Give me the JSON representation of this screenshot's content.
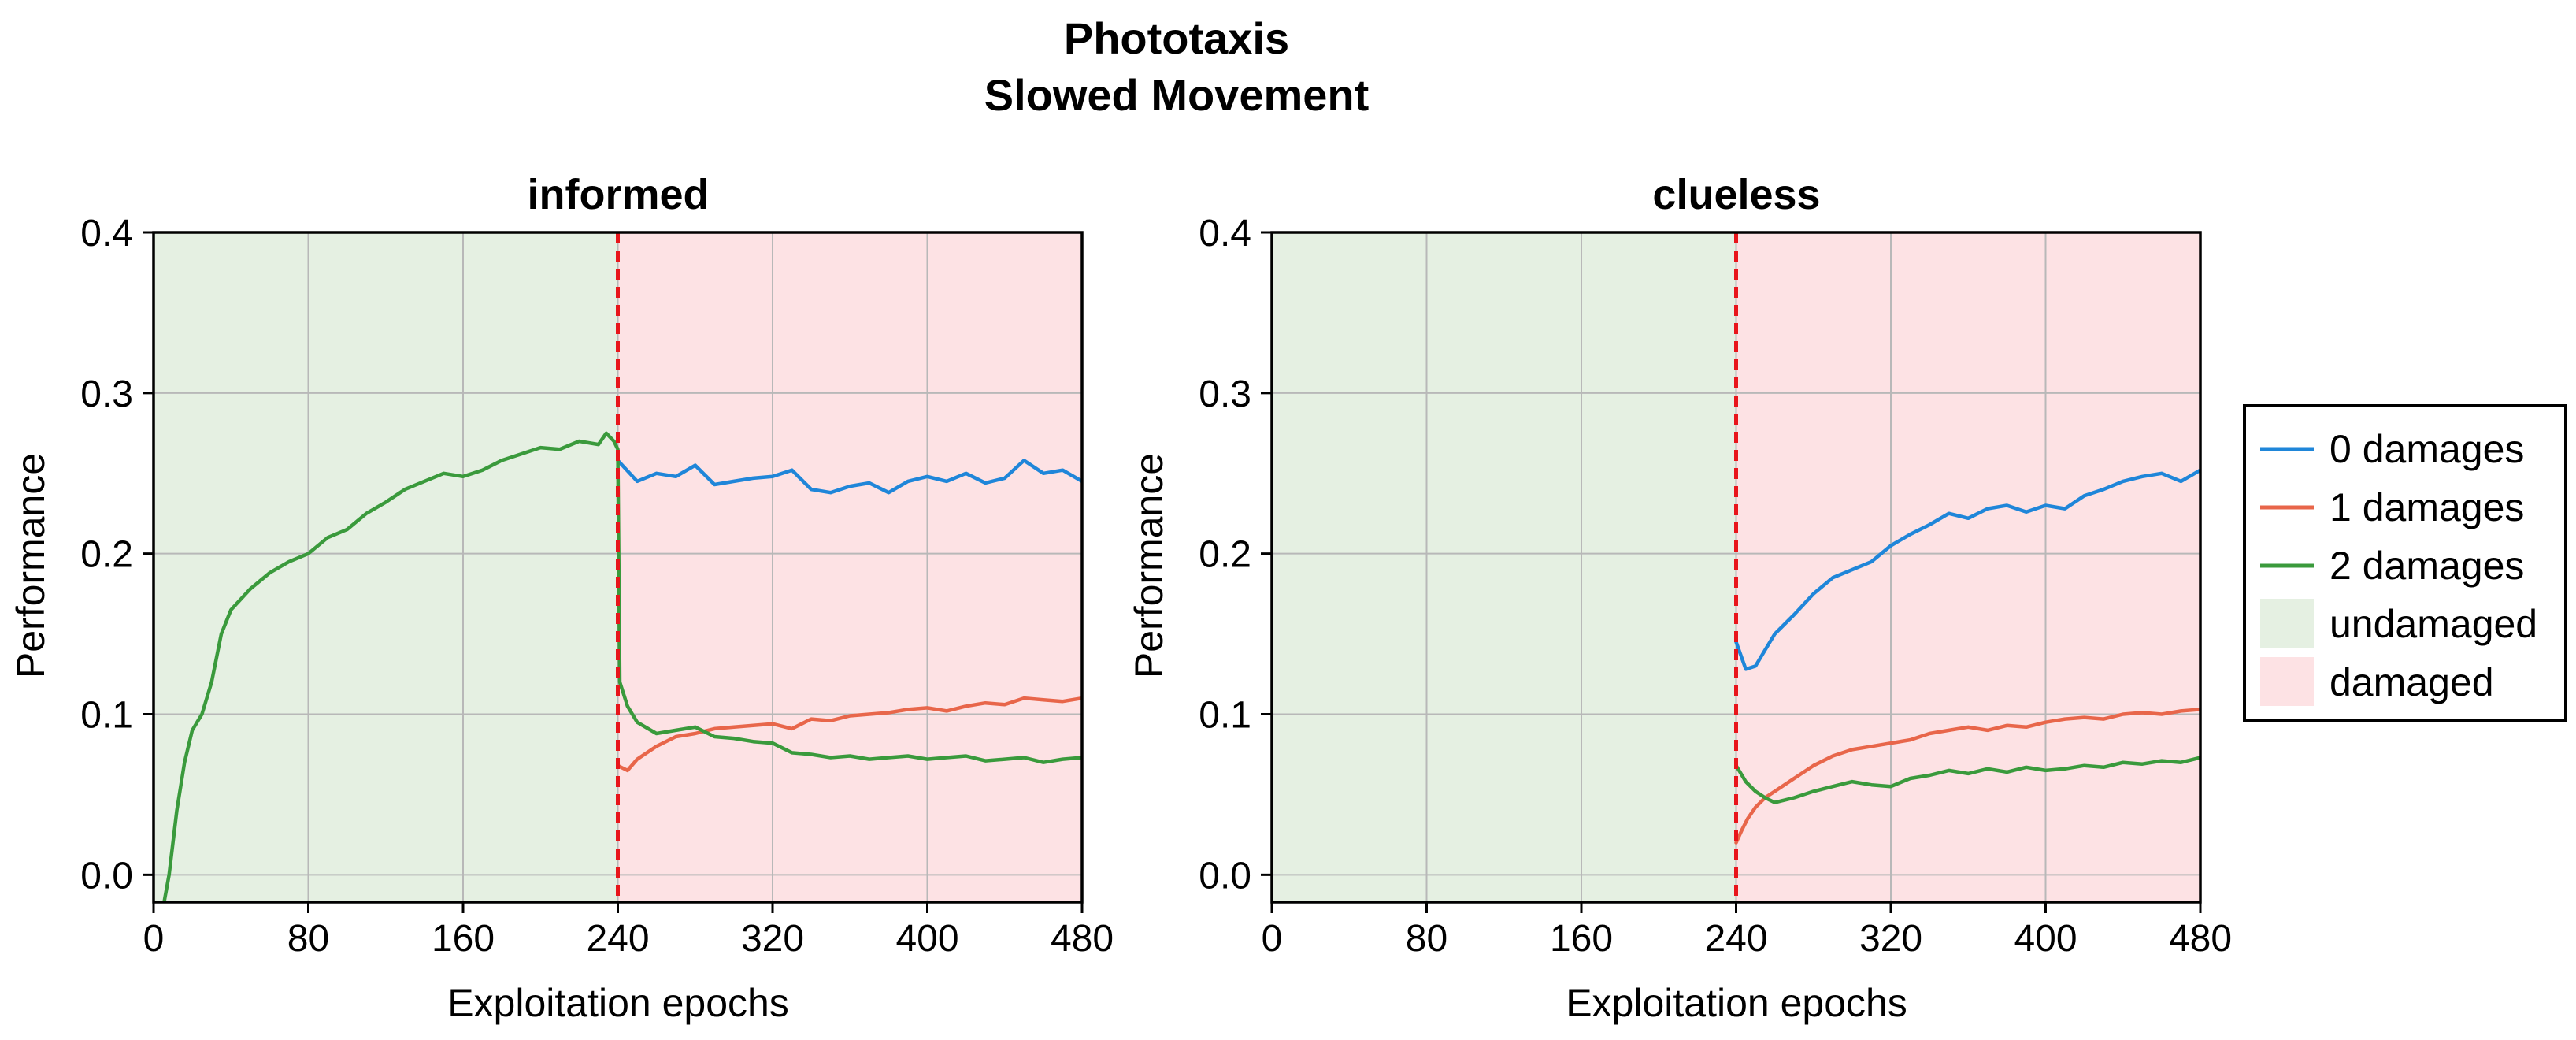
{
  "figure": {
    "title_lines": [
      "Phototaxis",
      "Slowed Movement"
    ]
  },
  "colors": {
    "series_0": "#1f86d9",
    "series_1": "#e8664a",
    "series_2": "#3a9a3c",
    "undamaged_bg": "#e5f0e2",
    "damaged_bg": "#fde2e4",
    "damage_line": "#e8151b",
    "grid": "#b8b8b8"
  },
  "legend": {
    "placement": "right",
    "items": [
      {
        "label": "0 damages",
        "kind": "line",
        "color_key": "series_0"
      },
      {
        "label": "1 damages",
        "kind": "line",
        "color_key": "series_1"
      },
      {
        "label": "2 damages",
        "kind": "line",
        "color_key": "series_2"
      },
      {
        "label": "undamaged",
        "kind": "patch",
        "color_key": "undamaged_bg"
      },
      {
        "label": "damaged",
        "kind": "patch",
        "color_key": "damaged_bg"
      }
    ]
  },
  "chart_data": [
    {
      "type": "line",
      "title": "informed",
      "xlabel": "Exploitation epochs",
      "ylabel": "Performance",
      "xlim": [
        0,
        480
      ],
      "ylim": [
        -0.017,
        0.4
      ],
      "xticks": [
        0,
        80,
        160,
        240,
        320,
        400,
        480
      ],
      "xtick_labels": [
        "0",
        "80",
        "160",
        "240",
        "320",
        "400",
        "480"
      ],
      "yticks": [
        0.0,
        0.1,
        0.2,
        0.3,
        0.4
      ],
      "ytick_labels": [
        "0.0",
        "0.1",
        "0.2",
        "0.3",
        "0.4"
      ],
      "grid": true,
      "damage_epoch": 240,
      "regions": [
        {
          "name": "undamaged",
          "x": [
            0,
            240
          ]
        },
        {
          "name": "damaged",
          "x": [
            240,
            480
          ]
        }
      ],
      "series": [
        {
          "name": "0 damages",
          "color_key": "series_0",
          "x": [
            240,
            250,
            260,
            270,
            280,
            290,
            300,
            310,
            320,
            330,
            340,
            350,
            360,
            370,
            380,
            390,
            400,
            410,
            420,
            430,
            440,
            450,
            460,
            470,
            480
          ],
          "y": [
            0.258,
            0.245,
            0.25,
            0.248,
            0.255,
            0.243,
            0.245,
            0.247,
            0.248,
            0.252,
            0.24,
            0.238,
            0.242,
            0.244,
            0.238,
            0.245,
            0.248,
            0.245,
            0.25,
            0.244,
            0.247,
            0.258,
            0.25,
            0.252,
            0.245
          ]
        },
        {
          "name": "1 damages",
          "color_key": "series_1",
          "x": [
            240,
            245,
            250,
            260,
            270,
            280,
            290,
            300,
            310,
            320,
            330,
            340,
            350,
            360,
            370,
            380,
            390,
            400,
            410,
            420,
            430,
            440,
            450,
            460,
            470,
            480
          ],
          "y": [
            0.068,
            0.065,
            0.072,
            0.08,
            0.086,
            0.088,
            0.091,
            0.092,
            0.093,
            0.094,
            0.091,
            0.097,
            0.096,
            0.099,
            0.1,
            0.101,
            0.103,
            0.104,
            0.102,
            0.105,
            0.107,
            0.106,
            0.11,
            0.109,
            0.108,
            0.11
          ]
        },
        {
          "name": "2 damages",
          "color_key": "series_2",
          "x": [
            5,
            8,
            12,
            16,
            20,
            25,
            30,
            35,
            40,
            50,
            60,
            70,
            80,
            90,
            100,
            110,
            120,
            130,
            140,
            150,
            160,
            170,
            180,
            190,
            200,
            210,
            220,
            230,
            234,
            238,
            240,
            241,
            245,
            250,
            260,
            270,
            280,
            290,
            300,
            310,
            320,
            330,
            340,
            350,
            360,
            370,
            380,
            390,
            400,
            410,
            420,
            430,
            440,
            450,
            460,
            470,
            480
          ],
          "y": [
            -0.02,
            0.0,
            0.04,
            0.07,
            0.09,
            0.1,
            0.12,
            0.15,
            0.165,
            0.178,
            0.188,
            0.195,
            0.2,
            0.21,
            0.215,
            0.225,
            0.232,
            0.24,
            0.245,
            0.25,
            0.248,
            0.252,
            0.258,
            0.262,
            0.266,
            0.265,
            0.27,
            0.268,
            0.275,
            0.27,
            0.265,
            0.12,
            0.105,
            0.095,
            0.088,
            0.09,
            0.092,
            0.086,
            0.085,
            0.083,
            0.082,
            0.076,
            0.075,
            0.073,
            0.074,
            0.072,
            0.073,
            0.074,
            0.072,
            0.073,
            0.074,
            0.071,
            0.072,
            0.073,
            0.07,
            0.072,
            0.073
          ]
        }
      ]
    },
    {
      "type": "line",
      "title": "clueless",
      "xlabel": "Exploitation epochs",
      "ylabel": "Performance",
      "xlim": [
        0,
        480
      ],
      "ylim": [
        -0.017,
        0.4
      ],
      "xticks": [
        0,
        80,
        160,
        240,
        320,
        400,
        480
      ],
      "xtick_labels": [
        "0",
        "80",
        "160",
        "240",
        "320",
        "400",
        "480"
      ],
      "yticks": [
        0.0,
        0.1,
        0.2,
        0.3,
        0.4
      ],
      "ytick_labels": [
        "0.0",
        "0.1",
        "0.2",
        "0.3",
        "0.4"
      ],
      "grid": true,
      "damage_epoch": 240,
      "regions": [
        {
          "name": "undamaged",
          "x": [
            0,
            240
          ]
        },
        {
          "name": "damaged",
          "x": [
            240,
            480
          ]
        }
      ],
      "series": [
        {
          "name": "0 damages",
          "color_key": "series_0",
          "x": [
            240,
            245,
            250,
            255,
            260,
            270,
            280,
            290,
            300,
            310,
            320,
            330,
            340,
            350,
            360,
            370,
            380,
            390,
            400,
            410,
            420,
            430,
            440,
            450,
            460,
            470,
            480
          ],
          "y": [
            0.145,
            0.128,
            0.13,
            0.14,
            0.15,
            0.162,
            0.175,
            0.185,
            0.19,
            0.195,
            0.205,
            0.212,
            0.218,
            0.225,
            0.222,
            0.228,
            0.23,
            0.226,
            0.23,
            0.228,
            0.236,
            0.24,
            0.245,
            0.248,
            0.25,
            0.245,
            0.252
          ]
        },
        {
          "name": "1 damages",
          "color_key": "series_1",
          "x": [
            240,
            243,
            246,
            250,
            255,
            260,
            270,
            280,
            290,
            300,
            310,
            320,
            330,
            340,
            350,
            360,
            370,
            380,
            390,
            400,
            410,
            420,
            430,
            440,
            450,
            460,
            470,
            480
          ],
          "y": [
            0.02,
            0.028,
            0.035,
            0.042,
            0.048,
            0.052,
            0.06,
            0.068,
            0.074,
            0.078,
            0.08,
            0.082,
            0.084,
            0.088,
            0.09,
            0.092,
            0.09,
            0.093,
            0.092,
            0.095,
            0.097,
            0.098,
            0.097,
            0.1,
            0.101,
            0.1,
            0.102,
            0.103
          ]
        },
        {
          "name": "2 damages",
          "color_key": "series_2",
          "x": [
            240,
            245,
            250,
            255,
            260,
            270,
            280,
            290,
            300,
            310,
            320,
            330,
            340,
            350,
            360,
            370,
            380,
            390,
            400,
            410,
            420,
            430,
            440,
            450,
            460,
            470,
            480
          ],
          "y": [
            0.068,
            0.058,
            0.052,
            0.048,
            0.045,
            0.048,
            0.052,
            0.055,
            0.058,
            0.056,
            0.055,
            0.06,
            0.062,
            0.065,
            0.063,
            0.066,
            0.064,
            0.067,
            0.065,
            0.066,
            0.068,
            0.067,
            0.07,
            0.069,
            0.071,
            0.07,
            0.073
          ]
        }
      ]
    }
  ]
}
